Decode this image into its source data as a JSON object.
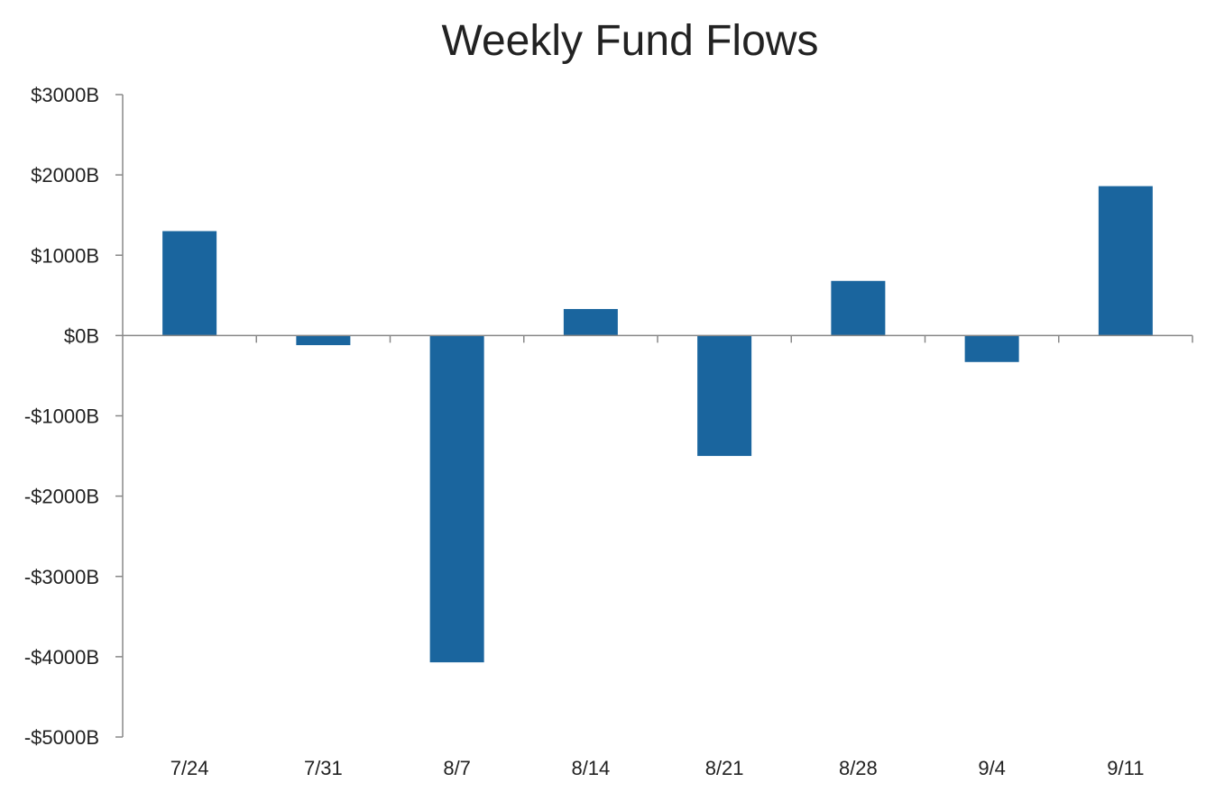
{
  "chart_data": {
    "type": "bar",
    "title": "Weekly Fund Flows",
    "xlabel": "",
    "ylabel": "",
    "categories": [
      "7/24",
      "7/31",
      "8/7",
      "8/14",
      "8/21",
      "8/28",
      "9/4",
      "9/11"
    ],
    "series": [
      {
        "values": [
          1300,
          -120,
          -4070,
          330,
          -1500,
          680,
          -330,
          1860
        ]
      }
    ],
    "ylim": [
      -5000,
      3000
    ],
    "yticks": [
      3000,
      2000,
      1000,
      0,
      -1000,
      -2000,
      -3000,
      -4000,
      -5000
    ],
    "ytick_labels": [
      "$3000B",
      "$2000B",
      "$1000B",
      "$0B",
      "-$1000B",
      "-$2000B",
      "-$3000B",
      "-$4000B",
      "-$5000B"
    ],
    "grid": false,
    "legend": "none",
    "colors": {
      "bar": "#1a659e",
      "axis": "#888888"
    }
  }
}
